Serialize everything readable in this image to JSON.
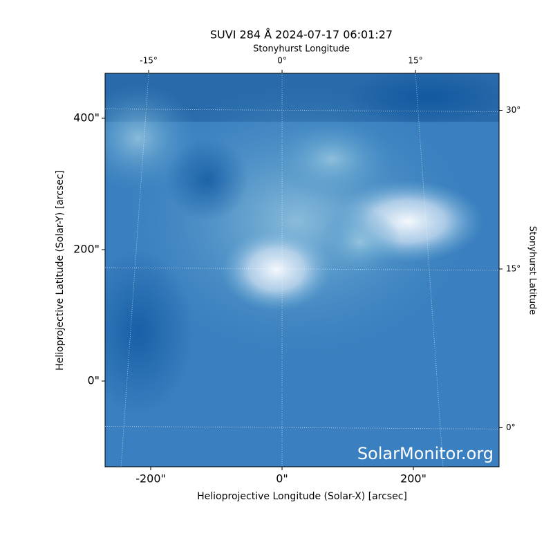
{
  "chart_data": {
    "type": "image",
    "title": "SUVI 284 Å 2024-07-17 06:01:27",
    "xlabel": "Helioprojective Longitude (Solar-X) [arcsec]",
    "ylabel": "Helioprojective Latitude (Solar-Y) [arcsec]",
    "x2label": "Stonyhurst Longitude",
    "y2label": "Stonyhurst Latitude",
    "watermark": "SolarMonitor.org",
    "xlim": [
      -269.5,
      330.5
    ],
    "ylim": [
      -130.5,
      468.4
    ],
    "xticks": [
      {
        "value": -200,
        "label": "-200\""
      },
      {
        "value": 0,
        "label": "0\""
      },
      {
        "value": 200,
        "label": "200\""
      }
    ],
    "yticks": [
      {
        "value": 0,
        "label": "0\""
      },
      {
        "value": 200,
        "label": "200\""
      },
      {
        "value": 400,
        "label": "400\""
      }
    ],
    "x2lim": [
      -19.9,
      24.4
    ],
    "x2ticks": [
      {
        "value": -15,
        "label": "-15°"
      },
      {
        "value": 0,
        "label": "0°"
      },
      {
        "value": 15,
        "label": "15°"
      }
    ],
    "y2lim": [
      -3.7,
      33.5
    ],
    "y2ticks": [
      {
        "value": 0,
        "label": "0°"
      },
      {
        "value": 15,
        "label": "15°"
      },
      {
        "value": 30,
        "label": "30°"
      }
    ],
    "grid": true
  }
}
